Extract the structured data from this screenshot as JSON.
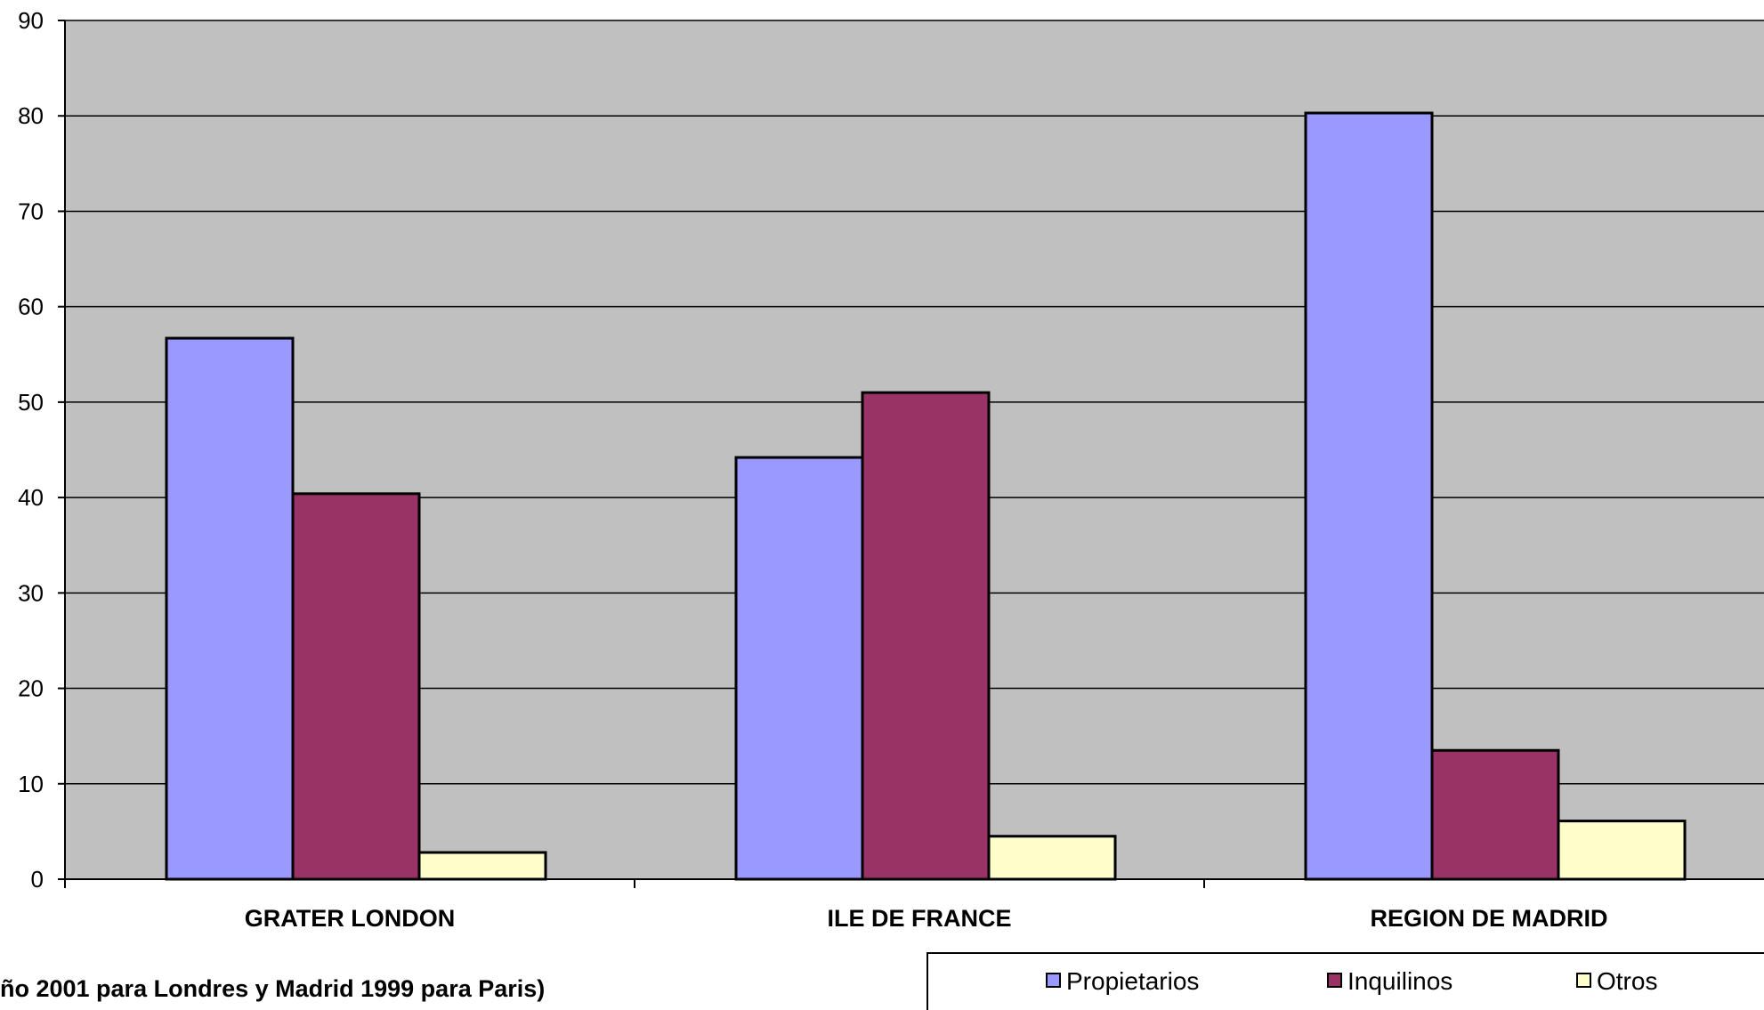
{
  "chart_data": {
    "type": "bar",
    "categories": [
      "GRATER LONDON",
      "ILE DE FRANCE",
      "REGION DE MADRID"
    ],
    "series": [
      {
        "name": "Propietarios",
        "values": [
          56.7,
          44.2,
          80.3
        ],
        "color": "#9999FF"
      },
      {
        "name": "Inquilinos",
        "values": [
          40.4,
          51.0,
          13.5
        ],
        "color": "#993366"
      },
      {
        "name": "Otros",
        "values": [
          2.8,
          4.5,
          6.1
        ],
        "color": "#FFFFCC"
      }
    ],
    "ylim": [
      0,
      90
    ],
    "yticks": [
      0,
      10,
      20,
      30,
      40,
      50,
      60,
      70,
      80,
      90
    ],
    "grid": true,
    "plot_background": "#C0C0C0",
    "legend_position": "bottom-right",
    "note": "ño  2001 para Londres y Madrid 1999 para Paris)"
  }
}
